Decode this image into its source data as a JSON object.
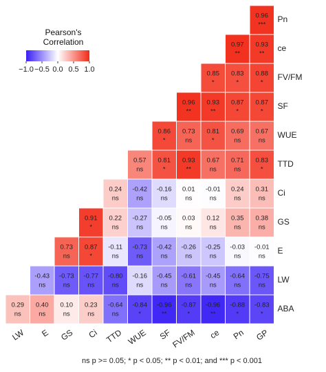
{
  "chart_data": {
    "type": "heatmap",
    "legend_title": "Pearson's Correlation",
    "x": [
      "LW",
      "E",
      "GS",
      "Ci",
      "TTD",
      "WUE",
      "SF",
      "FV/FM",
      "ce",
      "Pn",
      "GP"
    ],
    "y": [
      "Pn",
      "ce",
      "FV/FM",
      "SF",
      "WUE",
      "TTD",
      "Ci",
      "GS",
      "E",
      "LW",
      "ABA"
    ],
    "z": [
      [
        null,
        null,
        null,
        null,
        null,
        null,
        null,
        null,
        null,
        null,
        0.96
      ],
      [
        null,
        null,
        null,
        null,
        null,
        null,
        null,
        null,
        null,
        0.97,
        0.93
      ],
      [
        null,
        null,
        null,
        null,
        null,
        null,
        null,
        null,
        0.85,
        0.83,
        0.88
      ],
      [
        null,
        null,
        null,
        null,
        null,
        null,
        null,
        0.96,
        0.93,
        0.87,
        0.87
      ],
      [
        null,
        null,
        null,
        null,
        null,
        null,
        0.86,
        0.73,
        0.81,
        0.69,
        0.67
      ],
      [
        null,
        null,
        null,
        null,
        null,
        0.57,
        0.81,
        0.93,
        0.67,
        0.71,
        0.83
      ],
      [
        null,
        null,
        null,
        null,
        0.24,
        -0.42,
        -0.16,
        0.01,
        -0.01,
        0.24,
        0.31
      ],
      [
        null,
        null,
        null,
        0.91,
        0.22,
        -0.27,
        -0.05,
        0.03,
        0.12,
        0.35,
        0.38
      ],
      [
        null,
        null,
        0.73,
        0.87,
        -0.11,
        -0.73,
        -0.42,
        -0.26,
        -0.25,
        -0.03,
        -0.01
      ],
      [
        null,
        -0.43,
        -0.73,
        -0.77,
        -0.8,
        -0.16,
        -0.45,
        -0.61,
        -0.45,
        -0.64,
        -0.75
      ],
      [
        0.29,
        0.4,
        0.1,
        0.23,
        -0.64,
        -0.84,
        -0.96,
        -0.87,
        -0.96,
        -0.88,
        -0.83
      ]
    ],
    "value_labels": [
      [
        null,
        null,
        null,
        null,
        null,
        null,
        null,
        null,
        null,
        null,
        "0.96"
      ],
      [
        null,
        null,
        null,
        null,
        null,
        null,
        null,
        null,
        null,
        "0.97",
        "0.93"
      ],
      [
        null,
        null,
        null,
        null,
        null,
        null,
        null,
        null,
        "0.85",
        "0.83",
        "0.88"
      ],
      [
        null,
        null,
        null,
        null,
        null,
        null,
        null,
        "0.96",
        "0.93",
        "0.87",
        "0.87"
      ],
      [
        null,
        null,
        null,
        null,
        null,
        null,
        "0.86",
        "0.73",
        "0.81",
        "0.69",
        "0.67"
      ],
      [
        null,
        null,
        null,
        null,
        null,
        "0.57",
        "0.81",
        "0.93",
        "0.67",
        "0.71",
        "0.83"
      ],
      [
        null,
        null,
        null,
        null,
        "0.24",
        "-0.42",
        "-0.16",
        "0.01",
        "-0.01",
        "0.24",
        "0.31"
      ],
      [
        null,
        null,
        null,
        "0.91",
        "0.22",
        "-0.27",
        "-0.05",
        "0.03",
        "0.12",
        "0.35",
        "0.38"
      ],
      [
        null,
        null,
        "0.73",
        "0.87",
        "-0.11",
        "-0.73",
        "-0.42",
        "-0.26",
        "-0.25",
        "-0.03",
        "-0.01"
      ],
      [
        null,
        "-0.43",
        "-0.73",
        "-0.77",
        "-0.80",
        "-0.16",
        "-0.45",
        "-0.61",
        "-0.45",
        "-0.64",
        "-0.75"
      ],
      [
        "0.29",
        "0.40",
        "0.10",
        "0.23",
        "-0.64",
        "-0.84",
        "-0.96",
        "-0.87",
        "-0.96",
        "-0.88",
        "-0.83"
      ]
    ],
    "sig_labels": [
      [
        null,
        null,
        null,
        null,
        null,
        null,
        null,
        null,
        null,
        null,
        "***"
      ],
      [
        null,
        null,
        null,
        null,
        null,
        null,
        null,
        null,
        null,
        "**",
        "**"
      ],
      [
        null,
        null,
        null,
        null,
        null,
        null,
        null,
        null,
        "*",
        "*",
        "*"
      ],
      [
        null,
        null,
        null,
        null,
        null,
        null,
        null,
        "**",
        "**",
        "*",
        "*"
      ],
      [
        null,
        null,
        null,
        null,
        null,
        null,
        "*",
        "ns",
        "*",
        "ns",
        "ns"
      ],
      [
        null,
        null,
        null,
        null,
        null,
        "ns",
        "*",
        "**",
        "ns",
        "ns",
        "*"
      ],
      [
        null,
        null,
        null,
        null,
        "ns",
        "ns",
        "ns",
        "ns",
        "ns",
        "ns",
        "ns"
      ],
      [
        null,
        null,
        null,
        "*",
        "ns",
        "ns",
        "ns",
        "ns",
        "ns",
        "ns",
        "ns"
      ],
      [
        null,
        null,
        "ns",
        "*",
        "ns",
        "ns",
        "ns",
        "ns",
        "ns",
        "ns",
        "ns"
      ],
      [
        null,
        "ns",
        "ns",
        "ns",
        "ns",
        "ns",
        "ns",
        "ns",
        "ns",
        "ns",
        "ns"
      ],
      [
        "ns",
        "ns",
        "ns",
        "ns",
        "ns",
        "*",
        "**",
        "*",
        "**",
        "*",
        "*"
      ]
    ],
    "zlim": [
      -1,
      1
    ],
    "zticks": [
      {
        "value": -1,
        "label": "−1.0"
      },
      {
        "value": -0.5,
        "label": "−0.5"
      },
      {
        "value": 0,
        "label": "0.0"
      },
      0.5,
      {
        "value": 1,
        "label": "1.0"
      }
    ],
    "colors": {
      "low": "#3a1ff5",
      "mid": "#ffffff",
      "high": "#f22b18"
    },
    "footnote": "ns p >= 0.05; * p < 0.05; ** p < 0.01; and *** p < 0.001"
  }
}
